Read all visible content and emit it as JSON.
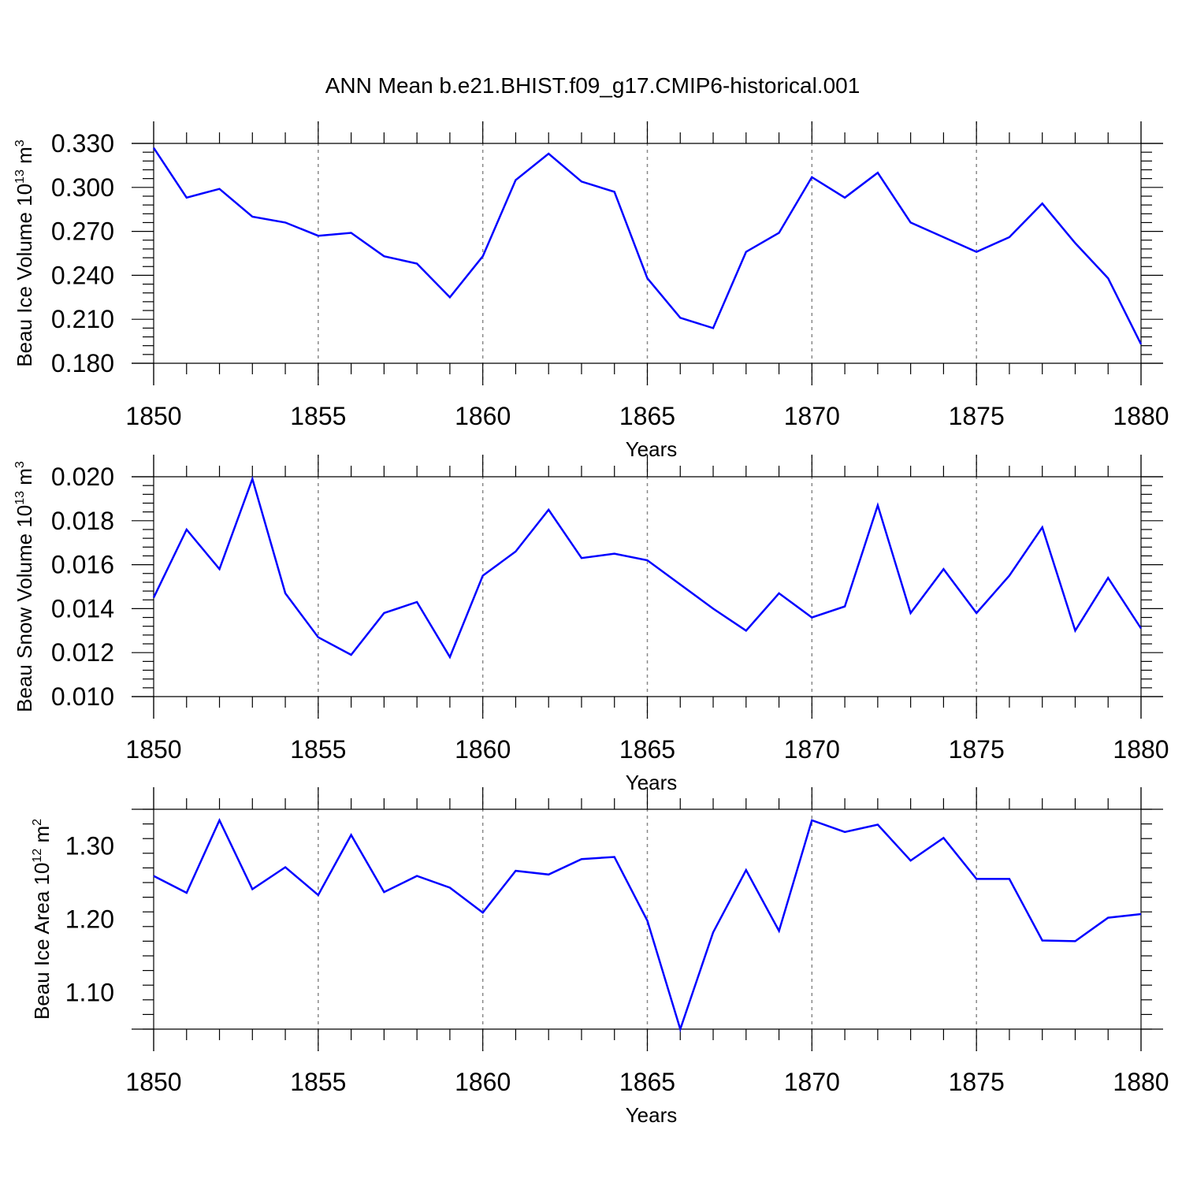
{
  "title": "ANN Mean b.e21.BHIST.f09_g17.CMIP6-historical.001",
  "line_color": "#0000ff",
  "chart_data": [
    {
      "type": "line",
      "ylabel": {
        "prefix": "Beau Ice Volume 10",
        "exp": "13",
        "unit": " m",
        "unit_exp": "3"
      },
      "xlabel": "Years",
      "xlim": [
        1850,
        1880
      ],
      "ylim": [
        0.18,
        0.33
      ],
      "xticks": [
        "1850",
        "1855",
        "1860",
        "1865",
        "1870",
        "1875",
        "1880"
      ],
      "yticks": [
        "0.180",
        "0.210",
        "0.240",
        "0.270",
        "0.300",
        "0.330"
      ],
      "x": [
        1850,
        1851,
        1852,
        1853,
        1854,
        1855,
        1856,
        1857,
        1858,
        1859,
        1860,
        1861,
        1862,
        1863,
        1864,
        1865,
        1866,
        1867,
        1868,
        1869,
        1870,
        1871,
        1872,
        1873,
        1874,
        1875,
        1876,
        1877,
        1878,
        1879,
        1880
      ],
      "values": [
        0.327,
        0.293,
        0.299,
        0.28,
        0.276,
        0.267,
        0.269,
        0.253,
        0.248,
        0.225,
        0.253,
        0.305,
        0.323,
        0.304,
        0.297,
        0.238,
        0.211,
        0.204,
        0.256,
        0.269,
        0.307,
        0.293,
        0.31,
        0.276,
        0.266,
        0.256,
        0.266,
        0.289,
        0.262,
        0.238,
        0.193
      ]
    },
    {
      "type": "line",
      "ylabel": {
        "prefix": "Beau Snow Volume 10",
        "exp": "13",
        "unit": " m",
        "unit_exp": "3"
      },
      "xlabel": "Years",
      "xlim": [
        1850,
        1880
      ],
      "ylim": [
        0.01,
        0.02
      ],
      "xticks": [
        "1850",
        "1855",
        "1860",
        "1865",
        "1870",
        "1875",
        "1880"
      ],
      "yticks": [
        "0.010",
        "0.012",
        "0.014",
        "0.016",
        "0.018",
        "0.020"
      ],
      "x": [
        1850,
        1851,
        1852,
        1853,
        1854,
        1855,
        1856,
        1857,
        1858,
        1859,
        1860,
        1861,
        1862,
        1863,
        1864,
        1865,
        1866,
        1867,
        1868,
        1869,
        1870,
        1871,
        1872,
        1873,
        1874,
        1875,
        1876,
        1877,
        1878,
        1879,
        1880
      ],
      "values": [
        0.0145,
        0.0176,
        0.0158,
        0.0199,
        0.0147,
        0.0127,
        0.0119,
        0.0138,
        0.0143,
        0.0118,
        0.0155,
        0.0166,
        0.0185,
        0.0163,
        0.0165,
        0.0162,
        0.0151,
        0.014,
        0.013,
        0.0147,
        0.0136,
        0.0141,
        0.0187,
        0.0138,
        0.0158,
        0.0138,
        0.0155,
        0.0177,
        0.013,
        0.0154,
        0.0131
      ]
    },
    {
      "type": "line",
      "ylabel": {
        "prefix": "Beau Ice Area 10",
        "exp": "12",
        "unit": " m",
        "unit_exp": "2"
      },
      "xlabel": "Years",
      "xlim": [
        1850,
        1880
      ],
      "ylim": [
        1.05,
        1.35
      ],
      "xticks": [
        "1850",
        "1855",
        "1860",
        "1865",
        "1870",
        "1875",
        "1880"
      ],
      "yticks": [
        "1.10",
        "1.20",
        "1.30"
      ],
      "ytick_values": [
        1.1,
        1.2,
        1.3
      ],
      "x": [
        1850,
        1851,
        1852,
        1853,
        1854,
        1855,
        1856,
        1857,
        1858,
        1859,
        1860,
        1861,
        1862,
        1863,
        1864,
        1865,
        1866,
        1867,
        1868,
        1869,
        1870,
        1871,
        1872,
        1873,
        1874,
        1875,
        1876,
        1877,
        1878,
        1879,
        1880
      ],
      "values": [
        1.259,
        1.236,
        1.335,
        1.241,
        1.271,
        1.233,
        1.315,
        1.237,
        1.259,
        1.243,
        1.209,
        1.266,
        1.261,
        1.282,
        1.285,
        1.198,
        1.05,
        1.182,
        1.267,
        1.184,
        1.335,
        1.319,
        1.329,
        1.28,
        1.311,
        1.255,
        1.255,
        1.171,
        1.17,
        1.202,
        1.207
      ]
    }
  ]
}
